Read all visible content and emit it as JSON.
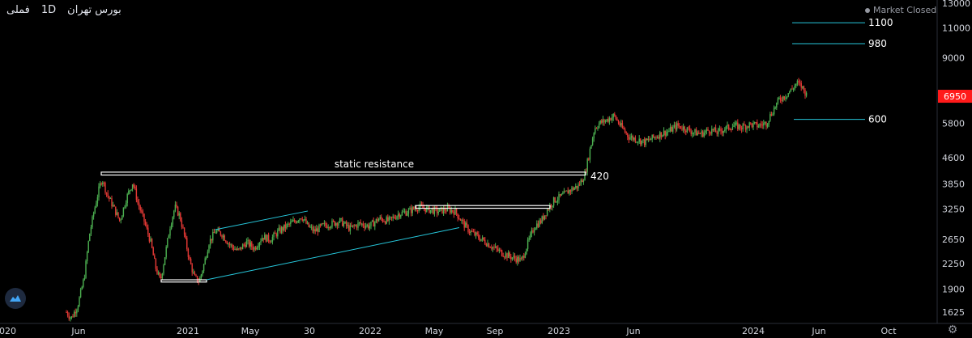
{
  "header": {
    "symbol": "فملی",
    "interval": "1D",
    "exchange": "بورس تهران",
    "market_status": "Market Closed"
  },
  "colors": {
    "background": "#000000",
    "up": "#4caf50",
    "down": "#e53935",
    "level_line": "#26c6da",
    "box": "#ffffff",
    "price_badge": "#ff1a1a",
    "axis_text": "#d1d4dc"
  },
  "chart_data": {
    "type": "candlestick",
    "y_scale": "log",
    "y_ticks": [
      1625,
      1900,
      2250,
      2650,
      3250,
      3850,
      4600,
      5800,
      6950,
      9000,
      11000,
      13000
    ],
    "last_price": 6950,
    "x_ticks": [
      "2020",
      "Jun",
      "2021",
      "May",
      "30",
      "2022",
      "May",
      "Sep",
      "2023",
      "Jun",
      "2024",
      "Jun",
      "Oct"
    ],
    "series_path": [
      [
        82,
        1625
      ],
      [
        88,
        1560
      ],
      [
        96,
        1700
      ],
      [
        104,
        2050
      ],
      [
        110,
        2700
      ],
      [
        116,
        3200
      ],
      [
        122,
        3700
      ],
      [
        126,
        4000
      ],
      [
        132,
        3600
      ],
      [
        140,
        3300
      ],
      [
        148,
        3000
      ],
      [
        156,
        3500
      ],
      [
        164,
        3900
      ],
      [
        170,
        3400
      ],
      [
        178,
        3000
      ],
      [
        186,
        2600
      ],
      [
        192,
        2200
      ],
      [
        198,
        2000
      ],
      [
        204,
        2400
      ],
      [
        210,
        2900
      ],
      [
        216,
        3300
      ],
      [
        222,
        3100
      ],
      [
        228,
        2700
      ],
      [
        234,
        2300
      ],
      [
        240,
        2050
      ],
      [
        246,
        2000
      ],
      [
        252,
        2250
      ],
      [
        258,
        2600
      ],
      [
        266,
        2800
      ],
      [
        274,
        2750
      ],
      [
        284,
        2550
      ],
      [
        294,
        2450
      ],
      [
        304,
        2600
      ],
      [
        314,
        2500
      ],
      [
        324,
        2700
      ],
      [
        334,
        2650
      ],
      [
        344,
        2800
      ],
      [
        354,
        2900
      ],
      [
        364,
        3000
      ],
      [
        372,
        3100
      ],
      [
        380,
        2900
      ],
      [
        388,
        2800
      ],
      [
        398,
        2900
      ],
      [
        410,
        2950
      ],
      [
        420,
        3000
      ],
      [
        432,
        2850
      ],
      [
        444,
        2950
      ],
      [
        456,
        2900
      ],
      [
        468,
        3050
      ],
      [
        480,
        3000
      ],
      [
        492,
        3150
      ],
      [
        504,
        3200
      ],
      [
        516,
        3300
      ],
      [
        528,
        3250
      ],
      [
        540,
        3200
      ],
      [
        552,
        3250
      ],
      [
        562,
        3200
      ],
      [
        572,
        2950
      ],
      [
        580,
        2800
      ],
      [
        590,
        2700
      ],
      [
        600,
        2600
      ],
      [
        610,
        2500
      ],
      [
        620,
        2420
      ],
      [
        632,
        2350
      ],
      [
        644,
        2300
      ],
      [
        652,
        2600
      ],
      [
        660,
        2900
      ],
      [
        668,
        3000
      ],
      [
        676,
        3250
      ],
      [
        684,
        3450
      ],
      [
        694,
        3550
      ],
      [
        704,
        3700
      ],
      [
        714,
        3800
      ],
      [
        722,
        4100
      ],
      [
        728,
        4800
      ],
      [
        734,
        5600
      ],
      [
        740,
        5800
      ],
      [
        748,
        5900
      ],
      [
        758,
        6100
      ],
      [
        766,
        5700
      ],
      [
        776,
        5300
      ],
      [
        786,
        5200
      ],
      [
        796,
        5100
      ],
      [
        806,
        5250
      ],
      [
        816,
        5400
      ],
      [
        826,
        5500
      ],
      [
        836,
        5700
      ],
      [
        846,
        5600
      ],
      [
        856,
        5450
      ],
      [
        866,
        5400
      ],
      [
        876,
        5550
      ],
      [
        886,
        5450
      ],
      [
        896,
        5600
      ],
      [
        906,
        5700
      ],
      [
        916,
        5650
      ],
      [
        926,
        5750
      ],
      [
        936,
        5700
      ],
      [
        946,
        5800
      ],
      [
        954,
        6300
      ],
      [
        962,
        6800
      ],
      [
        970,
        7000
      ],
      [
        978,
        7300
      ],
      [
        984,
        7600
      ],
      [
        990,
        7400
      ],
      [
        996,
        7000
      ]
    ],
    "annotations": [
      {
        "type": "label",
        "text": "static resistance",
        "x": "2021-09",
        "y": 4400
      },
      {
        "type": "label",
        "text": "420",
        "y": 4200
      },
      {
        "type": "hline",
        "label": "1100",
        "y": 11000
      },
      {
        "type": "hline",
        "label": "980",
        "y": 9800
      },
      {
        "type": "hline",
        "label": "600",
        "y": 6000
      }
    ]
  }
}
